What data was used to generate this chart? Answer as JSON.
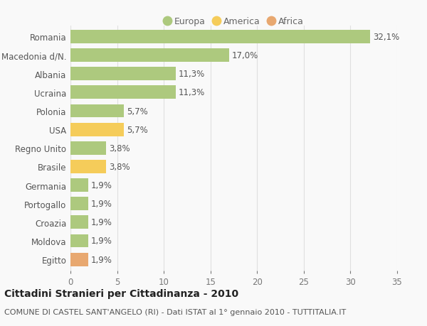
{
  "categories": [
    "Romania",
    "Macedonia d/N.",
    "Albania",
    "Ucraina",
    "Polonia",
    "USA",
    "Regno Unito",
    "Brasile",
    "Germania",
    "Portogallo",
    "Croazia",
    "Moldova",
    "Egitto"
  ],
  "values": [
    32.1,
    17.0,
    11.3,
    11.3,
    5.7,
    5.7,
    3.8,
    3.8,
    1.9,
    1.9,
    1.9,
    1.9,
    1.9
  ],
  "labels": [
    "32,1%",
    "17,0%",
    "11,3%",
    "11,3%",
    "5,7%",
    "5,7%",
    "3,8%",
    "3,8%",
    "1,9%",
    "1,9%",
    "1,9%",
    "1,9%",
    "1,9%"
  ],
  "continents": [
    "Europa",
    "Europa",
    "Europa",
    "Europa",
    "Europa",
    "America",
    "Europa",
    "America",
    "Europa",
    "Europa",
    "Europa",
    "Europa",
    "Africa"
  ],
  "colors": {
    "Europa": "#adc97e",
    "America": "#f5cc5a",
    "Africa": "#e8a870"
  },
  "legend_items": [
    "Europa",
    "America",
    "Africa"
  ],
  "legend_colors": [
    "#adc97e",
    "#f5cc5a",
    "#e8a870"
  ],
  "title": "Cittadini Stranieri per Cittadinanza - 2010",
  "subtitle": "COMUNE DI CASTEL SANT'ANGELO (RI) - Dati ISTAT al 1° gennaio 2010 - TUTTITALIA.IT",
  "xlim": [
    0,
    35
  ],
  "xticks": [
    0,
    5,
    10,
    15,
    20,
    25,
    30,
    35
  ],
  "background_color": "#f9f9f9",
  "grid_color": "#e0e0e0",
  "bar_height": 0.72,
  "title_fontsize": 10,
  "subtitle_fontsize": 8,
  "label_fontsize": 8.5,
  "tick_fontsize": 8.5,
  "legend_fontsize": 9
}
